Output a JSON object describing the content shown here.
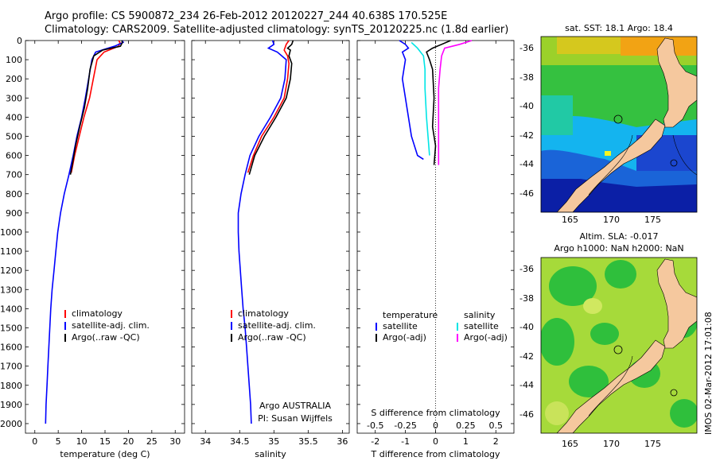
{
  "header": {
    "line1": "Argo profile: CS 5900872_234 26-Feb-2012 20120227_244 40.638S 170.525E",
    "line2": "Climatology: CARS2009. Satellite-adjusted climatology: synTS_20120225.nc (1.8d earlier)"
  },
  "colors": {
    "climatology": "#ff0000",
    "satellite": "#0000ff",
    "argo": "#000000",
    "sat_salinity": "#00e5e5",
    "argo_salinity": "#ff00ff"
  },
  "depth_axis": {
    "min": 0,
    "max": 2050,
    "ticks": [
      0,
      100,
      200,
      300,
      400,
      500,
      600,
      700,
      800,
      900,
      1000,
      1100,
      1200,
      1300,
      1400,
      1500,
      1600,
      1700,
      1800,
      1900,
      2000
    ]
  },
  "chart_data": [
    {
      "type": "line",
      "id": "temperature",
      "xlabel": "temperature (deg C)",
      "xlim": [
        -2,
        32
      ],
      "xticks": [
        0,
        5,
        10,
        15,
        20,
        25,
        30
      ],
      "ylim": [
        2050,
        0
      ],
      "legend": [
        "climatology",
        "satellite-adj. clim.",
        "Argo(..raw -QC)"
      ],
      "series": [
        {
          "name": "climatology",
          "color": "red",
          "points": [
            [
              17.9,
              0
            ],
            [
              18.2,
              10
            ],
            [
              17.9,
              30
            ],
            [
              14.8,
              60
            ],
            [
              13.3,
              100
            ],
            [
              12.5,
              200
            ],
            [
              11.7,
              300
            ],
            [
              10.5,
              400
            ],
            [
              9.5,
              500
            ],
            [
              8.5,
              600
            ],
            [
              7.8,
              690
            ]
          ]
        },
        {
          "name": "satellite-adj. clim.",
          "color": "blue",
          "points": [
            [
              18.7,
              0
            ],
            [
              18.9,
              10
            ],
            [
              17.0,
              30
            ],
            [
              13.0,
              60
            ],
            [
              12.2,
              100
            ],
            [
              11.5,
              200
            ],
            [
              10.8,
              300
            ],
            [
              10.0,
              400
            ],
            [
              9.0,
              500
            ],
            [
              8.2,
              600
            ],
            [
              7.3,
              700
            ],
            [
              6.3,
              800
            ],
            [
              5.5,
              900
            ],
            [
              4.9,
              1000
            ],
            [
              4.5,
              1100
            ],
            [
              4.1,
              1200
            ],
            [
              3.7,
              1300
            ],
            [
              3.4,
              1400
            ],
            [
              3.2,
              1500
            ],
            [
              3.0,
              1600
            ],
            [
              2.8,
              1700
            ],
            [
              2.6,
              1800
            ],
            [
              2.4,
              1900
            ],
            [
              2.3,
              2000
            ]
          ]
        },
        {
          "name": "Argo(..raw -QC)",
          "color": "black",
          "points": [
            [
              18.6,
              0
            ],
            [
              18.7,
              10
            ],
            [
              18.3,
              30
            ],
            [
              14.5,
              50
            ],
            [
              12.6,
              80
            ],
            [
              11.8,
              150
            ],
            [
              11.3,
              250
            ],
            [
              10.6,
              350
            ],
            [
              9.6,
              450
            ],
            [
              8.7,
              550
            ],
            [
              8.0,
              650
            ],
            [
              7.6,
              700
            ]
          ]
        }
      ]
    },
    {
      "type": "line",
      "id": "salinity",
      "xlabel": "salinity",
      "xlim": [
        33.8,
        36.1
      ],
      "xticks": [
        34,
        34.5,
        35,
        35.5,
        36
      ],
      "xticklabels": [
        "34",
        "34.5",
        "35",
        "35.5",
        "36"
      ],
      "ylim": [
        2050,
        0
      ],
      "legend": [
        "climatology",
        "satellite-adj. clim.",
        "Argo(..raw -QC)"
      ],
      "annotation": [
        "Argo AUSTRALIA",
        "PI: Susan Wijffels"
      ],
      "series": [
        {
          "name": "climatology",
          "color": "red",
          "points": [
            [
              35.22,
              0
            ],
            [
              35.18,
              20
            ],
            [
              35.15,
              50
            ],
            [
              35.2,
              80
            ],
            [
              35.22,
              120
            ],
            [
              35.2,
              200
            ],
            [
              35.15,
              300
            ],
            [
              35.0,
              400
            ],
            [
              34.82,
              500
            ],
            [
              34.7,
              600
            ],
            [
              34.62,
              690
            ]
          ]
        },
        {
          "name": "satellite-adj. clim.",
          "color": "blue",
          "points": [
            [
              34.98,
              0
            ],
            [
              35.0,
              20
            ],
            [
              34.92,
              40
            ],
            [
              35.05,
              60
            ],
            [
              35.18,
              100
            ],
            [
              35.16,
              200
            ],
            [
              35.1,
              300
            ],
            [
              34.95,
              400
            ],
            [
              34.78,
              500
            ],
            [
              34.65,
              600
            ],
            [
              34.58,
              700
            ],
            [
              34.52,
              800
            ],
            [
              34.48,
              900
            ],
            [
              34.48,
              1000
            ],
            [
              34.49,
              1100
            ],
            [
              34.51,
              1200
            ],
            [
              34.53,
              1300
            ],
            [
              34.55,
              1400
            ],
            [
              34.58,
              1500
            ],
            [
              34.6,
              1600
            ],
            [
              34.62,
              1700
            ],
            [
              34.64,
              1800
            ],
            [
              34.66,
              1900
            ],
            [
              34.67,
              2000
            ]
          ]
        },
        {
          "name": "Argo(..raw -QC)",
          "color": "black",
          "points": [
            [
              35.28,
              0
            ],
            [
              35.26,
              20
            ],
            [
              35.2,
              40
            ],
            [
              35.24,
              50
            ],
            [
              35.22,
              80
            ],
            [
              35.26,
              120
            ],
            [
              35.24,
              200
            ],
            [
              35.18,
              300
            ],
            [
              35.03,
              400
            ],
            [
              34.86,
              500
            ],
            [
              34.72,
              600
            ],
            [
              34.64,
              700
            ]
          ]
        }
      ]
    },
    {
      "type": "line",
      "id": "difference",
      "xlabel_bottom": "T difference from climatology",
      "xlabel_top": "S difference from climatology",
      "xlim": [
        -2.6,
        2.6
      ],
      "xticks": [
        -2,
        -1,
        0,
        1,
        2
      ],
      "xticks_s": [
        -0.5,
        -0.25,
        0,
        0.25,
        0.5
      ],
      "xticks_s_labels": [
        "-0.5",
        "-0.25",
        "0",
        "0.25",
        "0.5"
      ],
      "ylim": [
        2050,
        0
      ],
      "legend": [
        {
          "group": "temperature",
          "items": [
            "satellite",
            "Argo(-adj)"
          ]
        },
        {
          "group": "salinity",
          "items": [
            "satellite",
            "Argo(-adj)"
          ]
        }
      ],
      "series": [
        {
          "name": "temperature satellite",
          "color": "blue",
          "points": [
            [
              -1.2,
              0
            ],
            [
              -1.0,
              20
            ],
            [
              -0.9,
              40
            ],
            [
              -1.1,
              60
            ],
            [
              -1.0,
              100
            ],
            [
              -1.1,
              200
            ],
            [
              -1.0,
              300
            ],
            [
              -0.9,
              400
            ],
            [
              -0.8,
              500
            ],
            [
              -0.6,
              600
            ],
            [
              -0.4,
              620
            ]
          ]
        },
        {
          "name": "temperature Argo(-adj)",
          "color": "black",
          "points": [
            [
              0.5,
              0
            ],
            [
              0.2,
              20
            ],
            [
              -0.1,
              40
            ],
            [
              -0.3,
              60
            ],
            [
              -0.2,
              100
            ],
            [
              -0.1,
              150
            ],
            [
              -0.05,
              300
            ],
            [
              -0.1,
              450
            ],
            [
              0.0,
              550
            ],
            [
              -0.05,
              650
            ]
          ]
        },
        {
          "name": "salinity satellite",
          "color": "cyan",
          "points": [
            [
              -0.8,
              10
            ],
            [
              -0.6,
              40
            ],
            [
              -0.4,
              80
            ],
            [
              -0.35,
              150
            ],
            [
              -0.35,
              250
            ],
            [
              -0.3,
              400
            ],
            [
              -0.25,
              500
            ],
            [
              -0.2,
              600
            ]
          ]
        },
        {
          "name": "salinity Argo(-adj)",
          "color": "magenta",
          "points": [
            [
              1.2,
              0
            ],
            [
              0.8,
              20
            ],
            [
              0.3,
              40
            ],
            [
              0.2,
              80
            ],
            [
              0.15,
              150
            ],
            [
              0.1,
              250
            ],
            [
              0.1,
              400
            ],
            [
              0.1,
              500
            ],
            [
              0.1,
              650
            ]
          ]
        }
      ]
    }
  ],
  "map_sst": {
    "title": "sat. SST: 18.1  Argo: 18.4",
    "lat_ticks": [
      "-36",
      "-38",
      "-40",
      "-42",
      "-44",
      "-46"
    ],
    "lon_ticks": [
      "165",
      "170",
      "175"
    ]
  },
  "map_sla": {
    "title_line1": "Altim. SLA: -0.017",
    "title_line2": "Argo h1000: NaN h2000: NaN",
    "lat_ticks": [
      "-36",
      "-38",
      "-40",
      "-42",
      "-44",
      "-46"
    ],
    "lon_ticks": [
      "165",
      "170",
      "175"
    ]
  },
  "credit": "IMOS 02-Mar-2012 17:01:08"
}
